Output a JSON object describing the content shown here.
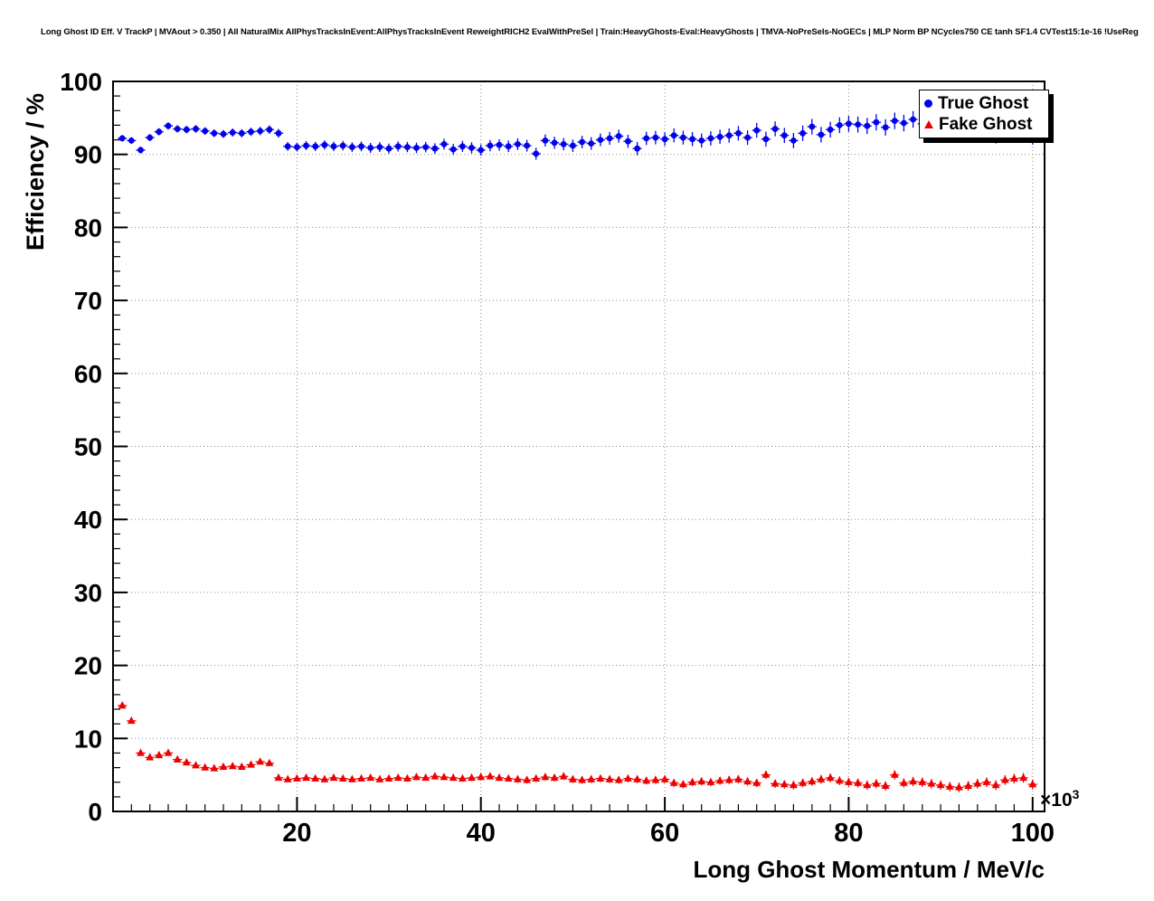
{
  "title": "Long Ghost ID Eff. V TrackP | MVAout > 0.350 | All NaturalMix AllPhysTracksInEvent:AllPhysTracksInEvent ReweightRICH2 EvalWithPreSel | Train:HeavyGhosts-Eval:HeavyGhosts | TMVA-NoPreSels-NoGECs | MLP Norm BP NCycles750 CE tanh SF1.4 CVTest15:1e-16 !UseReg",
  "chart_data": {
    "type": "scatter",
    "title": "Long Ghost ID Eff. V TrackP | MVAout > 0.350 | All NaturalMix AllPhysTracksInEvent:AllPhysTracksInEvent ReweightRICH2 EvalWithPreSel | Train:HeavyGhosts-Eval:HeavyGhosts | TMVA-NoPreSels-NoGECs | MLP Norm BP NCycles750 CE tanh SF1.4 CVTest15:1e-16 !UseReg",
    "xlabel": "Long Ghost Momentum / MeV/c",
    "ylabel": "Efficiency / %",
    "x_multiplier": {
      "base": "×10",
      "exp": "3"
    },
    "xlim": [
      0,
      101.3
    ],
    "ylim": [
      0,
      100
    ],
    "x_ticks": [
      20,
      40,
      60,
      80,
      100
    ],
    "y_ticks": [
      0,
      10,
      20,
      30,
      40,
      50,
      60,
      70,
      80,
      90,
      100
    ],
    "x_minor_step": 2,
    "y_minor_step": 2,
    "grid": true,
    "legend_position": "top-right",
    "x_start": 1.0,
    "x_step": 1.0,
    "series": [
      {
        "name": "True Ghost",
        "color": "#0000ee",
        "marker": "circle",
        "yerr_base": 0.45,
        "yerr_slope": 0.008,
        "values": [
          92.2,
          91.9,
          90.6,
          92.3,
          93.1,
          93.9,
          93.5,
          93.4,
          93.5,
          93.2,
          92.9,
          92.8,
          93.0,
          92.9,
          93.1,
          93.2,
          93.4,
          92.9,
          91.1,
          91.0,
          91.2,
          91.1,
          91.3,
          91.1,
          91.2,
          91.0,
          91.1,
          90.9,
          91.0,
          90.8,
          91.1,
          91.0,
          90.9,
          91.0,
          90.8,
          91.4,
          90.7,
          91.1,
          90.9,
          90.6,
          91.2,
          91.3,
          91.1,
          91.4,
          91.2,
          90.1,
          91.9,
          91.6,
          91.4,
          91.2,
          91.7,
          91.5,
          92.0,
          92.2,
          92.5,
          91.8,
          90.8,
          92.2,
          92.3,
          92.1,
          92.6,
          92.3,
          92.1,
          91.9,
          92.2,
          92.4,
          92.6,
          92.9,
          92.3,
          93.3,
          92.1,
          93.5,
          92.6,
          91.9,
          92.9,
          93.8,
          92.7,
          93.4,
          94.0,
          94.2,
          94.1,
          93.9,
          94.4,
          93.7,
          94.6,
          94.3,
          94.8,
          94.2,
          93.4,
          94.5,
          92.9,
          93.9,
          93.1,
          92.8,
          93.4,
          92.7,
          93.0,
          92.8,
          93.1,
          92.6
        ]
      },
      {
        "name": "Fake Ghost",
        "color": "#ee0000",
        "marker": "triangle",
        "yerr_base": 0.28,
        "yerr_slope": 0.004,
        "values": [
          14.5,
          12.4,
          8.0,
          7.4,
          7.7,
          8.0,
          7.1,
          6.7,
          6.3,
          6.0,
          5.9,
          6.1,
          6.2,
          6.1,
          6.4,
          6.8,
          6.6,
          4.6,
          4.4,
          4.5,
          4.6,
          4.5,
          4.4,
          4.6,
          4.5,
          4.4,
          4.5,
          4.6,
          4.4,
          4.5,
          4.6,
          4.5,
          4.7,
          4.6,
          4.8,
          4.7,
          4.6,
          4.5,
          4.6,
          4.7,
          4.8,
          4.6,
          4.5,
          4.4,
          4.3,
          4.5,
          4.7,
          4.6,
          4.8,
          4.4,
          4.3,
          4.4,
          4.5,
          4.4,
          4.3,
          4.5,
          4.4,
          4.2,
          4.3,
          4.4,
          3.9,
          3.7,
          4.0,
          4.1,
          4.0,
          4.2,
          4.3,
          4.4,
          4.1,
          3.9,
          5.0,
          3.8,
          3.7,
          3.6,
          3.9,
          4.1,
          4.4,
          4.6,
          4.2,
          4.0,
          3.9,
          3.6,
          3.8,
          3.5,
          5.0,
          3.9,
          4.1,
          4.0,
          3.8,
          3.6,
          3.4,
          3.3,
          3.5,
          3.8,
          4.0,
          3.6,
          4.3,
          4.5,
          4.6,
          3.7
        ]
      }
    ]
  }
}
